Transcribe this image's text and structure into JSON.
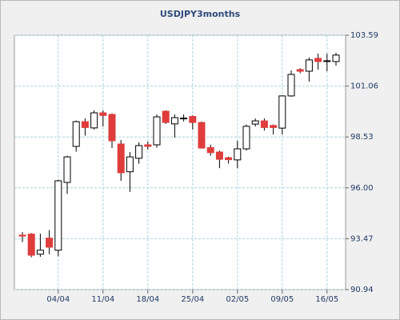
{
  "chart_data": {
    "type": "candlestick",
    "title": "USDJPY3months",
    "categories": [
      null,
      null,
      null,
      null,
      "04/04",
      null,
      null,
      null,
      null,
      "11/04",
      null,
      null,
      null,
      null,
      "18/04",
      null,
      null,
      null,
      null,
      "25/04",
      null,
      null,
      null,
      null,
      "02/05",
      null,
      null,
      null,
      null,
      "09/05",
      null,
      null,
      null,
      null,
      "16/05",
      null
    ],
    "open": [
      93.65,
      93.7,
      92.7,
      93.5,
      92.9,
      96.27,
      98.06,
      99.29,
      98.98,
      99.73,
      99.65,
      98.18,
      96.8,
      97.47,
      98.14,
      98.14,
      99.81,
      99.18,
      99.45,
      99.55,
      99.25,
      98.0,
      97.78,
      97.5,
      97.39,
      97.94,
      99.17,
      99.33,
      99.1,
      98.97,
      100.57,
      101.88,
      101.8,
      102.44,
      102.28,
      102.28
    ],
    "high": [
      93.8,
      93.75,
      93.72,
      93.9,
      96.4,
      97.6,
      99.35,
      99.45,
      99.85,
      99.85,
      99.7,
      98.38,
      97.78,
      98.26,
      98.3,
      99.65,
      99.85,
      99.65,
      99.65,
      99.6,
      99.3,
      98.15,
      97.85,
      97.55,
      98.34,
      99.15,
      99.45,
      99.45,
      99.15,
      100.6,
      101.84,
      101.95,
      102.48,
      102.67,
      102.67,
      102.72
    ],
    "low": [
      93.3,
      92.55,
      92.57,
      92.7,
      92.6,
      95.7,
      97.8,
      98.6,
      98.9,
      99.05,
      97.98,
      96.35,
      95.8,
      97.2,
      97.9,
      98.0,
      99.18,
      98.5,
      99.3,
      98.9,
      97.95,
      97.6,
      96.98,
      97.2,
      96.98,
      97.85,
      99.05,
      98.85,
      98.65,
      98.65,
      100.53,
      101.7,
      101.28,
      101.88,
      101.8,
      102.08
    ],
    "close": [
      93.6,
      92.65,
      92.9,
      93.05,
      96.35,
      97.54,
      99.29,
      99.0,
      99.73,
      99.6,
      98.34,
      96.75,
      97.54,
      98.1,
      98.06,
      99.53,
      99.25,
      99.49,
      99.47,
      99.25,
      97.98,
      97.75,
      97.42,
      97.4,
      97.94,
      99.06,
      99.33,
      99.0,
      99.0,
      100.57,
      101.64,
      101.8,
      102.36,
      102.28,
      102.32,
      102.6
    ],
    "up_color": "#ffffff",
    "down_color": "#e03c3c",
    "ylim": [
      90.94,
      103.59
    ],
    "yticks": [
      90.94,
      93.47,
      {
        "value": 96,
        "label": "96.00"
      },
      98.53,
      101.06,
      103.59
    ],
    "grid": true
  }
}
